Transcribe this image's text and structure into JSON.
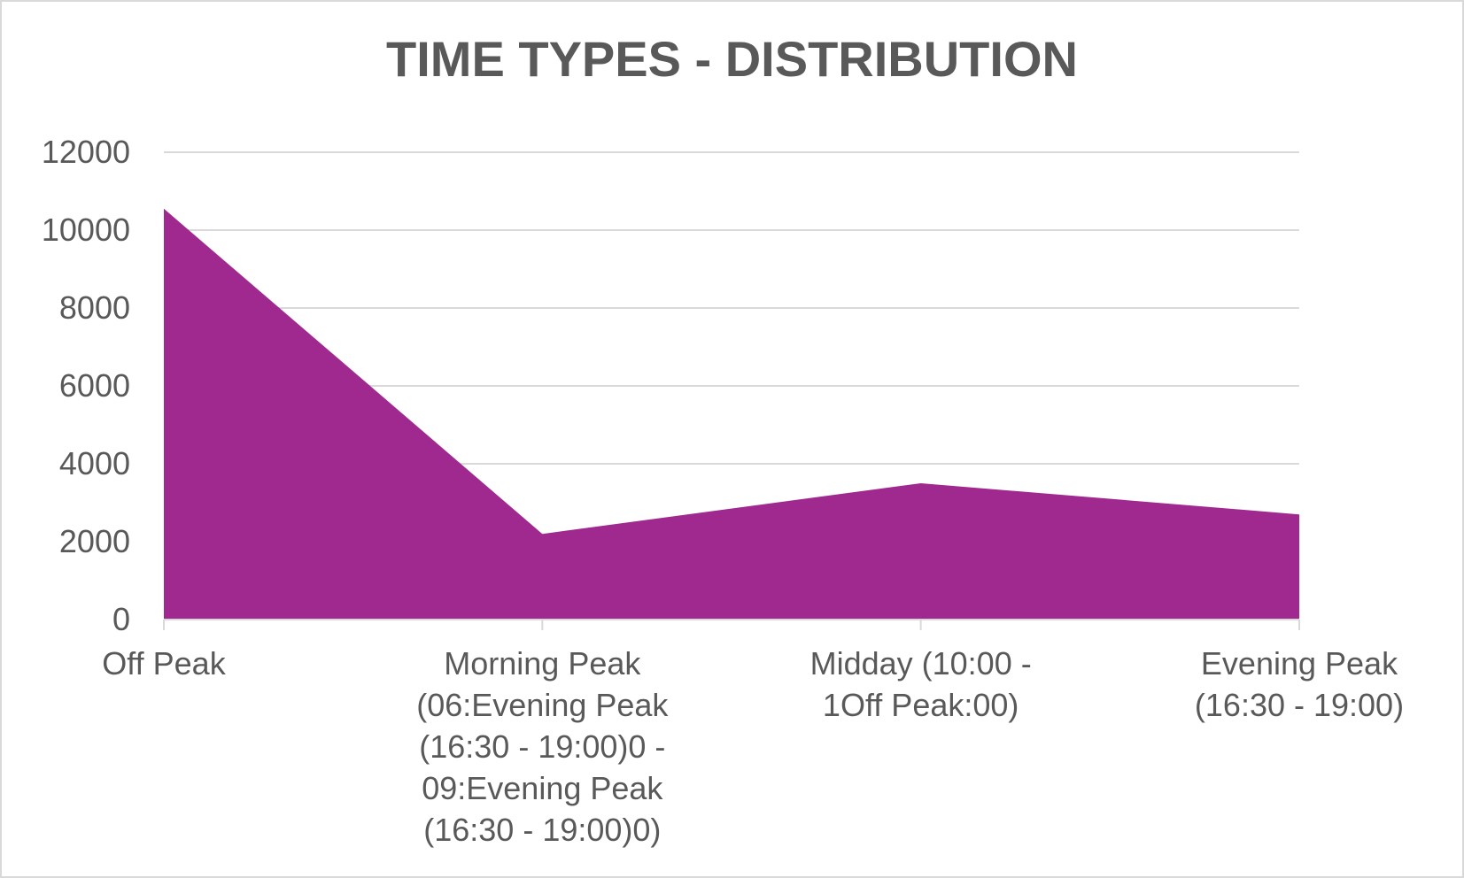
{
  "chart_data": {
    "type": "area",
    "title": "TIME TYPES - DISTRIBUTION",
    "categories": [
      "Off Peak",
      "Morning Peak (06:Evening Peak (16:30 - 19:00)0 - 09:Evening Peak (16:30 - 19:00)0)",
      "Midday (10:00 - 1Off Peak:00)",
      "Evening Peak (16:30 - 19:00)"
    ],
    "category_label_lines": [
      [
        "Off Peak"
      ],
      [
        "Morning Peak",
        "(06:Evening Peak",
        "(16:30 - 19:00)0 -",
        "09:Evening Peak",
        "(16:30 - 19:00)0)"
      ],
      [
        "Midday (10:00 -",
        "1Off Peak:00)"
      ],
      [
        "Evening Peak",
        "(16:30 - 19:00)"
      ]
    ],
    "values": [
      10550,
      2200,
      3500,
      2700
    ],
    "ylim": [
      0,
      12000
    ],
    "yticks": [
      0,
      2000,
      4000,
      6000,
      8000,
      10000,
      12000
    ],
    "xlabel": "",
    "ylabel": "",
    "grid": true,
    "legend": "none",
    "colors": {
      "area": "#a0298f",
      "grid": "#d9d9d9",
      "text": "#595959",
      "axis": "#d9d9d9"
    }
  }
}
